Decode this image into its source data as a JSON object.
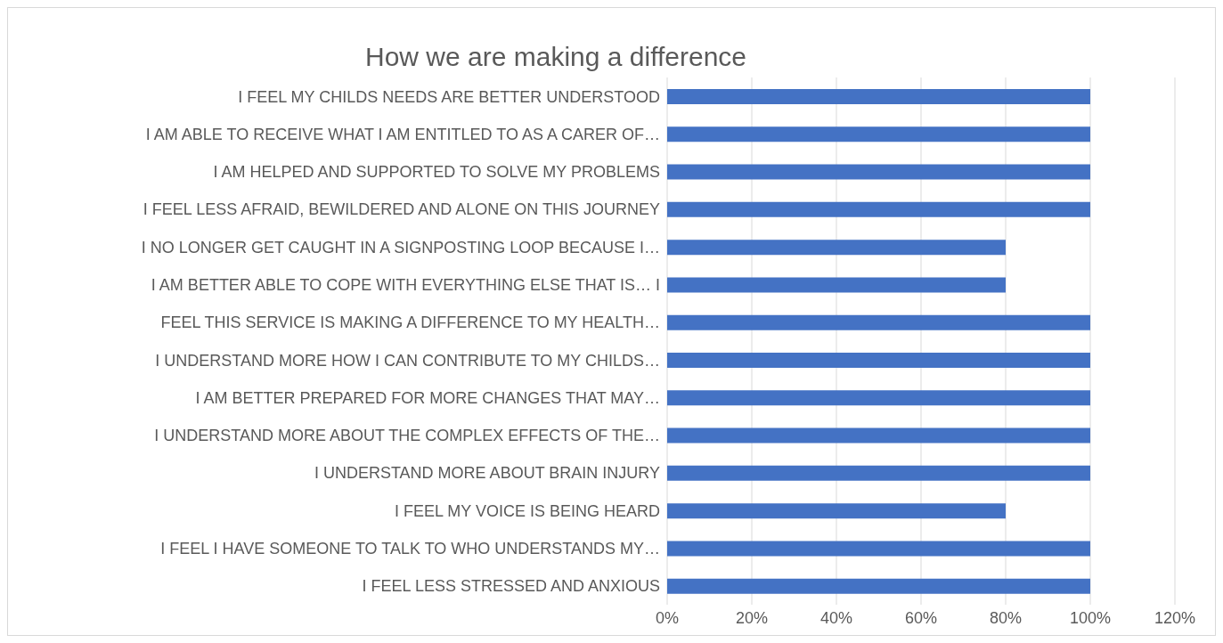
{
  "chart_data": {
    "type": "bar",
    "orientation": "horizontal",
    "title": "How we are making a difference",
    "categories": [
      "I FEEL MY CHILDS NEEDS ARE BETTER UNDERSTOOD",
      "I AM ABLE TO RECEIVE WHAT I AM ENTITLED TO AS A CARER OF…",
      "I AM HELPED AND SUPPORTED TO SOLVE MY PROBLEMS",
      "I FEEL LESS AFRAID, BEWILDERED AND ALONE ON THIS JOURNEY",
      "I NO LONGER GET CAUGHT IN A SIGNPOSTING LOOP BECAUSE I…",
      "I AM BETTER ABLE TO COPE WITH EVERYTHING ELSE THAT IS… I",
      "FEEL THIS SERVICE IS MAKING A DIFFERENCE TO MY HEALTH…",
      "I UNDERSTAND MORE HOW I CAN CONTRIBUTE TO MY CHILDS…",
      "I AM BETTER PREPARED FOR MORE CHANGES THAT MAY…",
      "I UNDERSTAND MORE ABOUT THE COMPLEX EFFECTS OF THE…",
      "I UNDERSTAND MORE ABOUT BRAIN INJURY",
      "I FEEL MY VOICE IS BEING HEARD",
      "I FEEL I HAVE SOMEONE TO TALK TO WHO UNDERSTANDS MY…",
      "I FEEL LESS STRESSED AND ANXIOUS"
    ],
    "values": [
      100,
      100,
      100,
      100,
      80,
      80,
      100,
      100,
      100,
      100,
      100,
      80,
      100,
      100
    ],
    "color": "#4472c4",
    "xlim": [
      0,
      120
    ],
    "xticks": [
      {
        "value": 0,
        "label": "0%"
      },
      {
        "value": 20,
        "label": "20%"
      },
      {
        "value": 40,
        "label": "40%"
      },
      {
        "value": 60,
        "label": "60%"
      },
      {
        "value": 80,
        "label": "80%"
      },
      {
        "value": 100,
        "label": "100%"
      },
      {
        "value": 120,
        "label": "120%"
      }
    ],
    "grid": "x"
  }
}
